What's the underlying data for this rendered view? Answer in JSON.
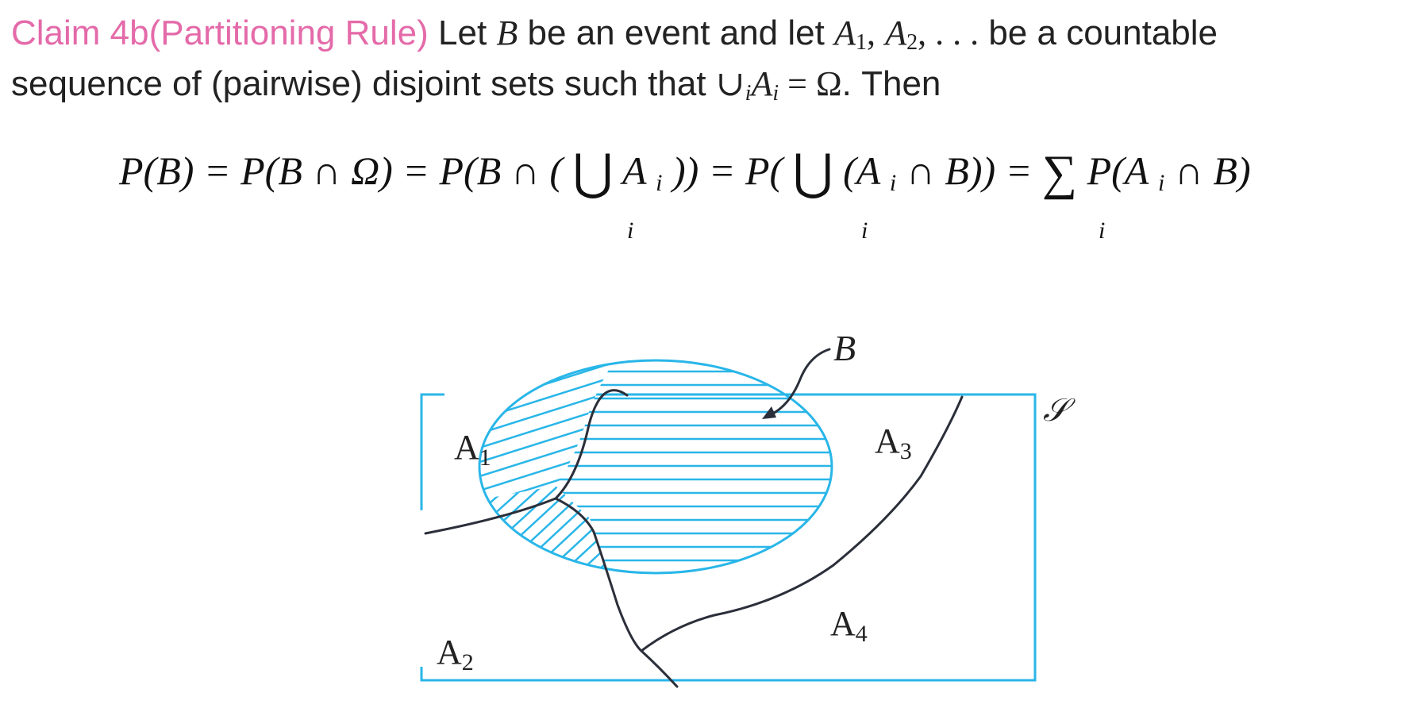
{
  "claim": {
    "heading": "Claim 4b(Partitioning Rule)",
    "t1": "Let",
    "B": "B",
    "t2": "be an event and let",
    "A": "A",
    "sub1": "1",
    "comma1": ",",
    "sub2": "2",
    "dots": ", . . .",
    "t3": "be a countable",
    "t4": "sequence of (pairwise) disjoint sets such that",
    "union": "∪",
    "i": "i",
    "eq": " = ",
    "Omega": "Ω",
    "t5": ". Then"
  },
  "equation": {
    "seg1": "P(B) = P(B ∩ Ω) = P(B ∩ (",
    "seg2": "A",
    "seg3": ")) = P(",
    "seg4": "(A",
    "seg5": " ∩ B)) = ",
    "seg6": "P(A",
    "seg7": " ∩ B)",
    "sub_i": "i",
    "big_union": "⋃",
    "big_sum": "∑"
  },
  "diagram": {
    "event_label": "B",
    "sample_space_label": "𝒮",
    "regions": [
      {
        "letter": "A",
        "index": "1"
      },
      {
        "letter": "A",
        "index": "2"
      },
      {
        "letter": "A",
        "index": "3"
      },
      {
        "letter": "A",
        "index": "4"
      }
    ],
    "colors": {
      "outline": "#29b6e8",
      "boundary": "#2b2f3a",
      "text": "#222222"
    }
  }
}
